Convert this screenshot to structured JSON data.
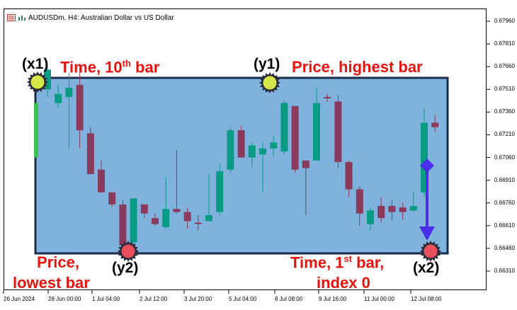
{
  "window": {
    "title": "AUDUSDm, H4:  Australian Dollar vs US Dollar",
    "icons": [
      "chart-window-icon",
      "indicator-icon"
    ]
  },
  "colors": {
    "rectangle_fill": "#7fb3dd",
    "rectangle_border": "#1c2b4a",
    "bull_candle": "#0a9b85",
    "bear_candle": "#8a3a5c",
    "highlight_candle": "#3cc24a",
    "annotation_text": "#e8120c",
    "arrow": "#4a2fe8",
    "point_yellow": "#d4e84a",
    "point_red": "#e84f5a"
  },
  "price_axis": {
    "ticks": [
      "0.67960",
      "0.67810",
      "0.67660",
      "0.67510",
      "0.67360",
      "0.67210",
      "0.67060",
      "0.66910",
      "0.66760",
      "0.66610",
      "0.66460",
      "0.66310"
    ],
    "range": [
      0.6622,
      0.6806
    ]
  },
  "time_axis": {
    "ticks": [
      "26 Jun 2024",
      "28 Jun 00:00",
      "1 Jul 04:00",
      "2 Jul 12:00",
      "3 Jul 20:00",
      "5 Jul 04:00",
      "8 Jul 08:00",
      "9 Jul 16:00",
      "11 Jul 00:00",
      "12 Jul 08:00"
    ]
  },
  "annotations": {
    "x1_label": "(x1)",
    "time_10th_bar": "Time, 10",
    "time_10th_sup": "th",
    "time_10th_suffix": " bar",
    "y1_label": "(y1)",
    "price_highest_bar": "Price, highest bar",
    "price_lowest_1": "Price,",
    "price_lowest_2": "lowest bar",
    "y2_label": "(y2)",
    "time_1st_bar": "Time, 1",
    "time_1st_sup": "st",
    "time_1st_suffix": " bar,",
    "index_0": "index 0",
    "x2_label": "(x2)"
  },
  "chart_data": {
    "type": "candlestick",
    "title": "AUDUSDm, H4:  Australian Dollar vs US Dollar",
    "ylim": [
      0.6622,
      0.6806
    ],
    "candles": [
      {
        "o": 0.6706,
        "c": 0.6742,
        "h": 0.6742,
        "l": 0.6706,
        "bull": true,
        "highlight": true
      },
      {
        "o": 0.6751,
        "c": 0.6764,
        "h": 0.6766,
        "l": 0.6746,
        "bull": true
      },
      {
        "o": 0.6748,
        "c": 0.6742,
        "h": 0.6754,
        "l": 0.6739,
        "bull": true
      },
      {
        "o": 0.6746,
        "c": 0.6752,
        "h": 0.6762,
        "l": 0.6712,
        "bull": true
      },
      {
        "o": 0.6754,
        "c": 0.6724,
        "h": 0.6766,
        "l": 0.6712,
        "bull": false
      },
      {
        "o": 0.6722,
        "c": 0.6695,
        "h": 0.6726,
        "l": 0.6695,
        "bull": false
      },
      {
        "o": 0.6698,
        "c": 0.6683,
        "h": 0.6704,
        "l": 0.6683,
        "bull": false
      },
      {
        "o": 0.6683,
        "c": 0.6675,
        "h": 0.6683,
        "l": 0.6673,
        "bull": false
      },
      {
        "o": 0.6675,
        "c": 0.6648,
        "h": 0.6678,
        "l": 0.6646,
        "bull": false
      },
      {
        "o": 0.665,
        "c": 0.6679,
        "h": 0.6679,
        "l": 0.6646,
        "bull": true
      },
      {
        "o": 0.6675,
        "c": 0.6669,
        "h": 0.6675,
        "l": 0.6666,
        "bull": false
      },
      {
        "o": 0.6666,
        "c": 0.6662,
        "h": 0.6669,
        "l": 0.6661,
        "bull": false
      },
      {
        "o": 0.666,
        "c": 0.6672,
        "h": 0.6693,
        "l": 0.6659,
        "bull": true
      },
      {
        "o": 0.6672,
        "c": 0.667,
        "h": 0.6711,
        "l": 0.6669,
        "bull": false
      },
      {
        "o": 0.667,
        "c": 0.6664,
        "h": 0.6673,
        "l": 0.6659,
        "bull": false
      },
      {
        "o": 0.6663,
        "c": 0.6663,
        "h": 0.6668,
        "l": 0.6658,
        "bull": false
      },
      {
        "o": 0.6664,
        "c": 0.6668,
        "h": 0.6695,
        "l": 0.6664,
        "bull": true
      },
      {
        "o": 0.667,
        "c": 0.6697,
        "h": 0.6702,
        "l": 0.6668,
        "bull": true
      },
      {
        "o": 0.6698,
        "c": 0.6724,
        "h": 0.6726,
        "l": 0.6696,
        "bull": true
      },
      {
        "o": 0.6724,
        "c": 0.6706,
        "h": 0.6727,
        "l": 0.6706,
        "bull": false
      },
      {
        "o": 0.6706,
        "c": 0.6714,
        "h": 0.6716,
        "l": 0.67,
        "bull": true
      },
      {
        "o": 0.6708,
        "c": 0.6712,
        "h": 0.6716,
        "l": 0.6683,
        "bull": true
      },
      {
        "o": 0.6716,
        "c": 0.6712,
        "h": 0.672,
        "l": 0.6707,
        "bull": true
      },
      {
        "o": 0.671,
        "c": 0.6742,
        "h": 0.6744,
        "l": 0.6708,
        "bull": true
      },
      {
        "o": 0.674,
        "c": 0.6698,
        "h": 0.674,
        "l": 0.6696,
        "bull": false
      },
      {
        "o": 0.6704,
        "c": 0.6699,
        "h": 0.6704,
        "l": 0.6668,
        "bull": false
      },
      {
        "o": 0.6704,
        "c": 0.6742,
        "h": 0.6752,
        "l": 0.6704,
        "bull": true
      },
      {
        "o": 0.6746,
        "c": 0.6746,
        "h": 0.6748,
        "l": 0.6743,
        "bull": false
      },
      {
        "o": 0.6743,
        "c": 0.6703,
        "h": 0.6747,
        "l": 0.6699,
        "bull": false
      },
      {
        "o": 0.6703,
        "c": 0.6685,
        "h": 0.6704,
        "l": 0.668,
        "bull": false
      },
      {
        "o": 0.6685,
        "c": 0.6669,
        "h": 0.6687,
        "l": 0.6661,
        "bull": false
      },
      {
        "o": 0.6662,
        "c": 0.6671,
        "h": 0.6673,
        "l": 0.6658,
        "bull": true
      },
      {
        "o": 0.6674,
        "c": 0.6666,
        "h": 0.668,
        "l": 0.6663,
        "bull": false
      },
      {
        "o": 0.667,
        "c": 0.6674,
        "h": 0.6678,
        "l": 0.6664,
        "bull": false
      },
      {
        "o": 0.6673,
        "c": 0.667,
        "h": 0.6676,
        "l": 0.6665,
        "bull": false
      },
      {
        "o": 0.6671,
        "c": 0.6674,
        "h": 0.6683,
        "l": 0.667,
        "bull": true
      },
      {
        "o": 0.6683,
        "c": 0.6729,
        "h": 0.6738,
        "l": 0.668,
        "bull": true
      },
      {
        "o": 0.6729,
        "c": 0.6726,
        "h": 0.6734,
        "l": 0.6723,
        "bull": false
      }
    ]
  }
}
